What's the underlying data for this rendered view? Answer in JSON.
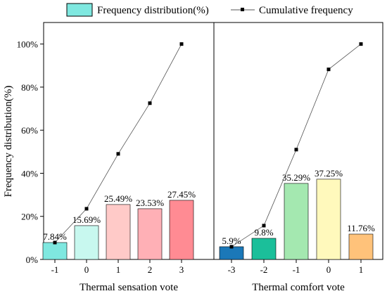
{
  "chart_data": {
    "type": "bar",
    "ylabel": "Frequency distribution(%)",
    "ylim": [
      0,
      110
    ],
    "yticks": [
      0,
      20,
      40,
      60,
      80,
      100
    ],
    "ytick_labels": [
      "0%",
      "20%",
      "40%",
      "60%",
      "80%",
      "100%"
    ],
    "grid": false,
    "legend": {
      "placement": "top",
      "bar_label": "Frequency distribution(%)",
      "line_label": "Cumulative frequency"
    },
    "panels": [
      {
        "xlabel": "Thermal sensation vote",
        "categories": [
          "-1",
          "0",
          "1",
          "2",
          "3"
        ],
        "values": [
          7.84,
          15.69,
          25.49,
          23.53,
          27.45
        ],
        "data_labels": [
          "7.84%",
          "15.69%",
          "25.49%",
          "23.53%",
          "27.45%"
        ],
        "cumulative": [
          7.84,
          23.53,
          49.02,
          72.55,
          100.0
        ],
        "colors": [
          "#7fe8e0",
          "#c8f8ef",
          "#ffcac8",
          "#ffb0b6",
          "#ff8b93"
        ]
      },
      {
        "xlabel": "Thermal comfort vote",
        "categories": [
          "-3",
          "-2",
          "-1",
          "0",
          "1"
        ],
        "values": [
          5.9,
          9.8,
          35.29,
          37.25,
          11.76
        ],
        "data_labels": [
          "5.9%",
          "9.8%",
          "35.29%",
          "37.25%",
          "11.76%"
        ],
        "cumulative": [
          5.9,
          15.7,
          50.99,
          88.24,
          100.0
        ],
        "colors": [
          "#1b78b8",
          "#1bbf9a",
          "#a4e8b0",
          "#fff9bc",
          "#ffc27a"
        ]
      }
    ]
  },
  "colors": {
    "legend_bar_fill": "#7fe8e0",
    "line": "#555555",
    "marker": "#000000"
  }
}
